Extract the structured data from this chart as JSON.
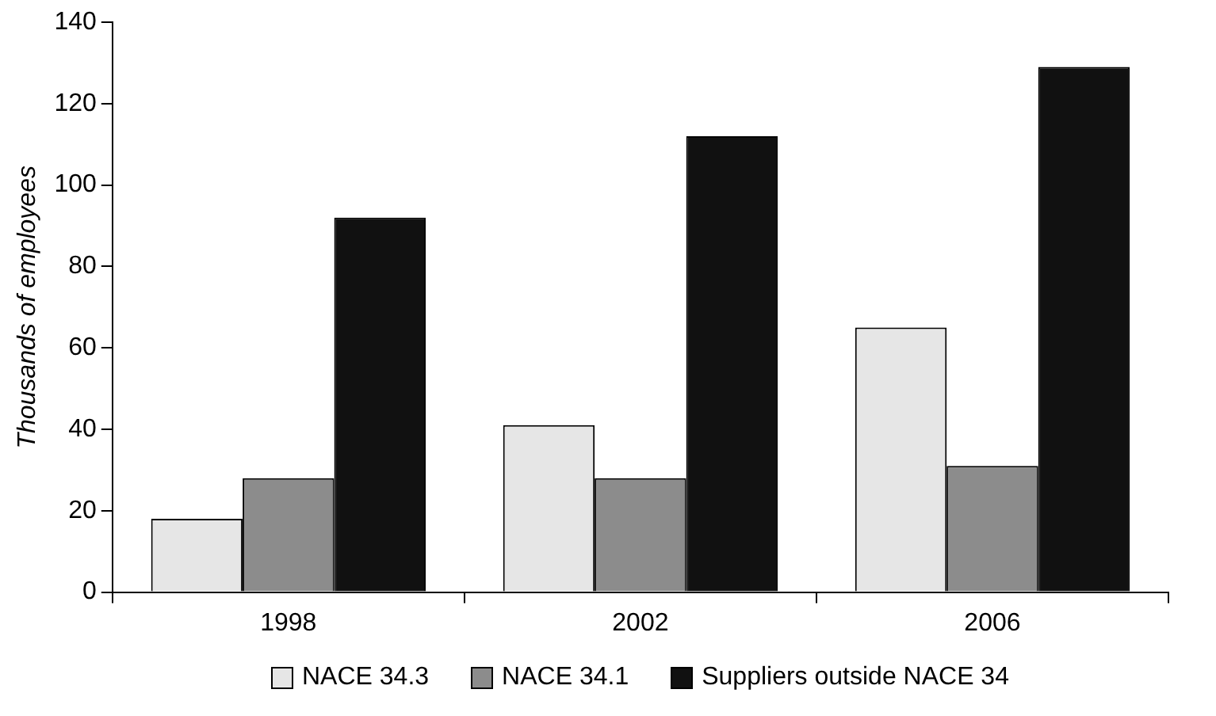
{
  "chart_data": {
    "type": "bar",
    "ylabel": "Thousands of employees",
    "categories": [
      "1998",
      "2002",
      "2006"
    ],
    "series": [
      {
        "name": "NACE 34.3",
        "color": "#e6e6e6",
        "values": [
          18,
          41,
          65
        ]
      },
      {
        "name": "NACE 34.1",
        "color": "#8c8c8c",
        "values": [
          28,
          28,
          31
        ]
      },
      {
        "name": "Suppliers outside NACE 34",
        "color": "#111111",
        "values": [
          92,
          112,
          129
        ]
      }
    ],
    "ylim": [
      0,
      140
    ],
    "yticks": [
      0,
      20,
      40,
      60,
      80,
      100,
      120,
      140
    ],
    "grid": false,
    "legend": "bottom"
  }
}
